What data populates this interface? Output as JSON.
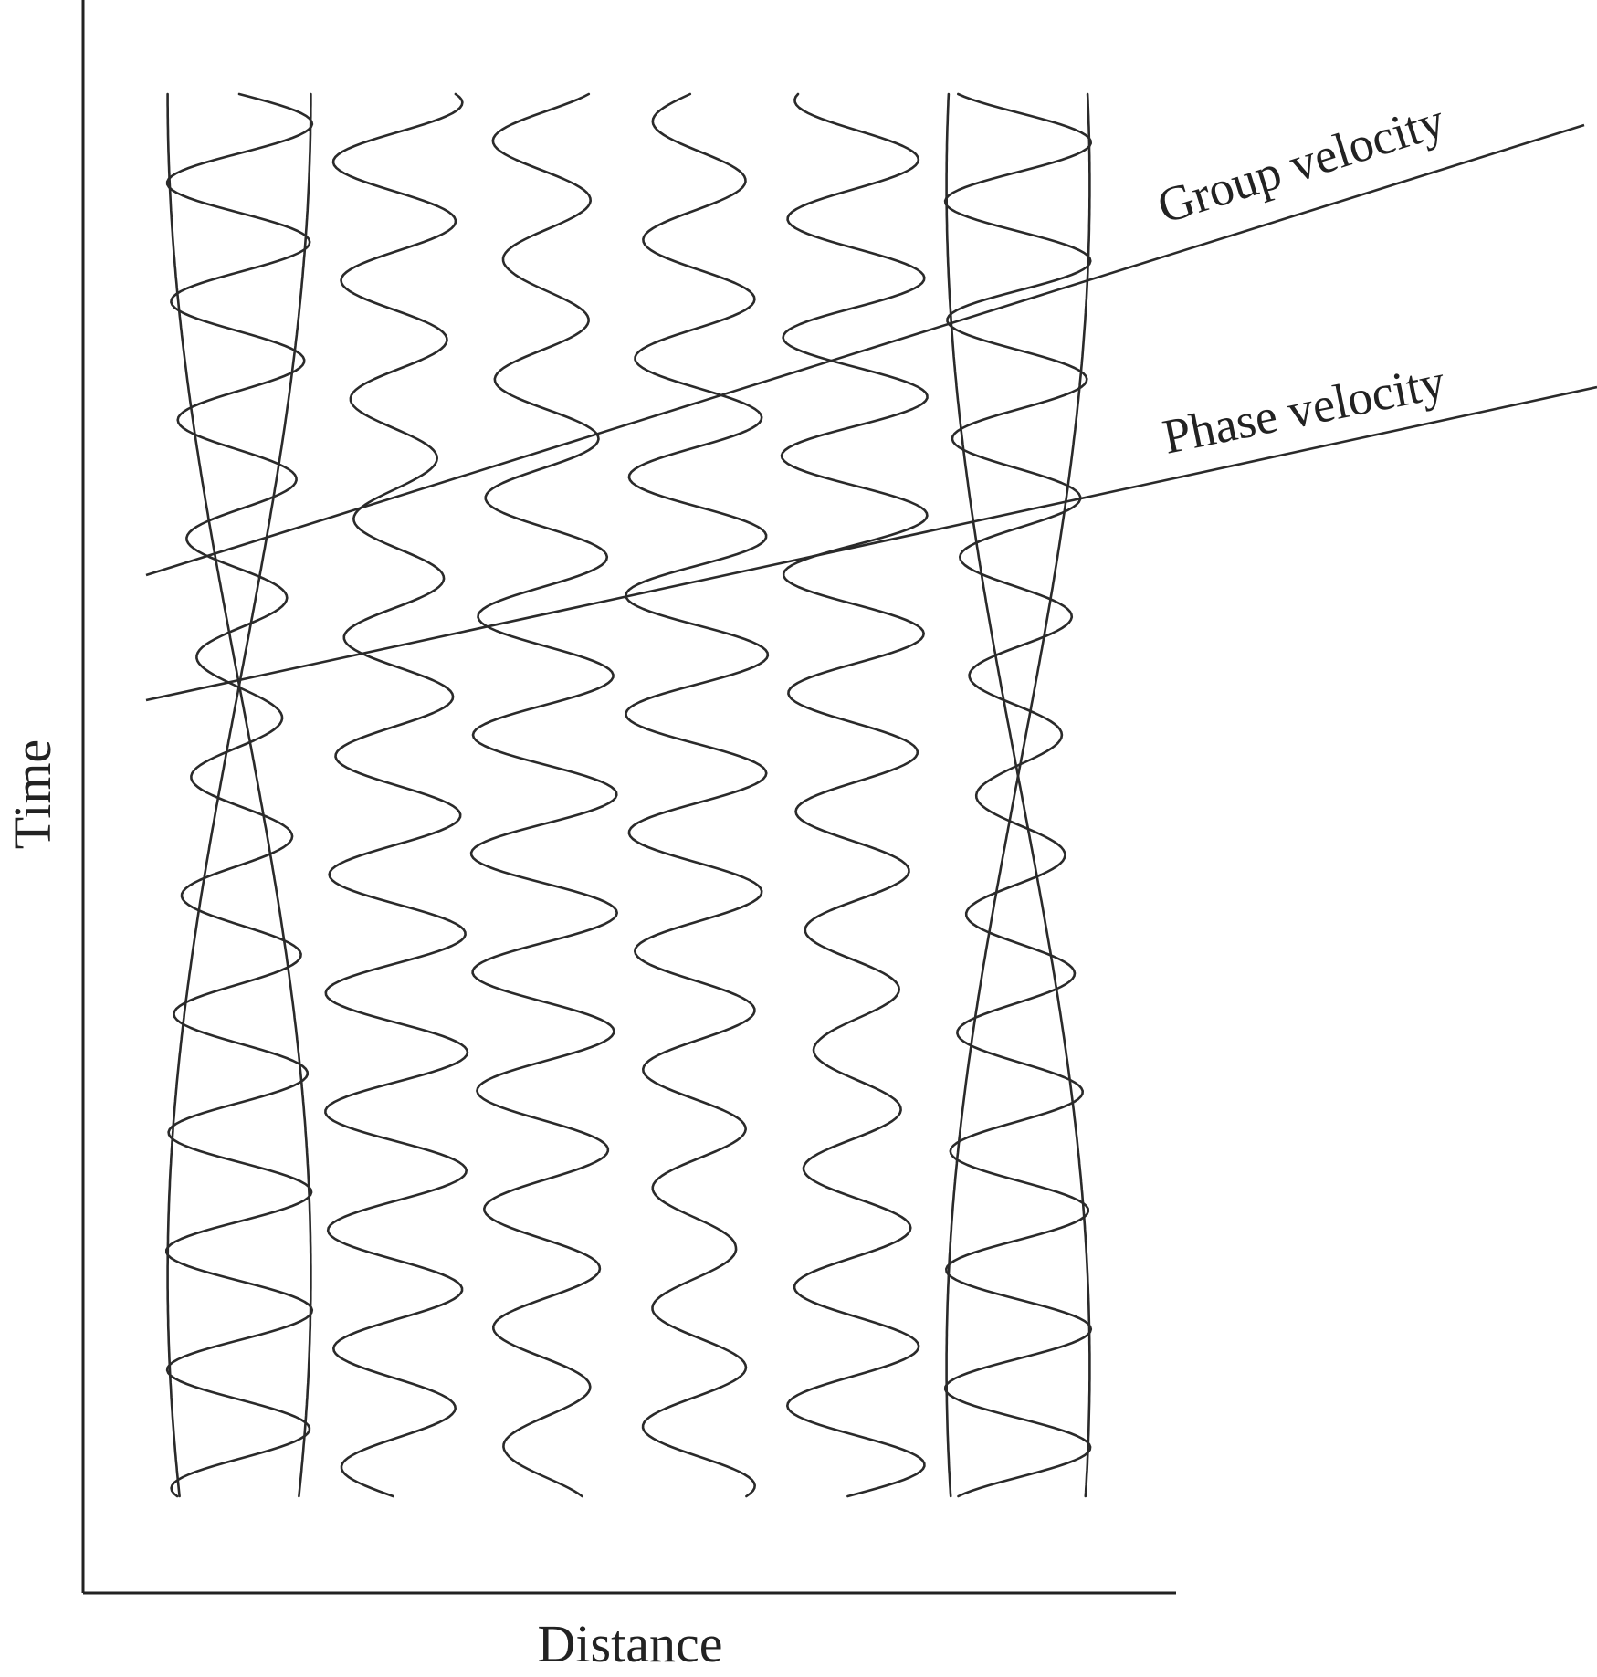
{
  "axes": {
    "x_label": "Distance",
    "y_label": "Time"
  },
  "lines": {
    "group_label": "Group velocity",
    "phase_label": "Phase velocity"
  },
  "traces": {
    "count": 7,
    "envelope_traces": [
      0,
      6
    ]
  }
}
